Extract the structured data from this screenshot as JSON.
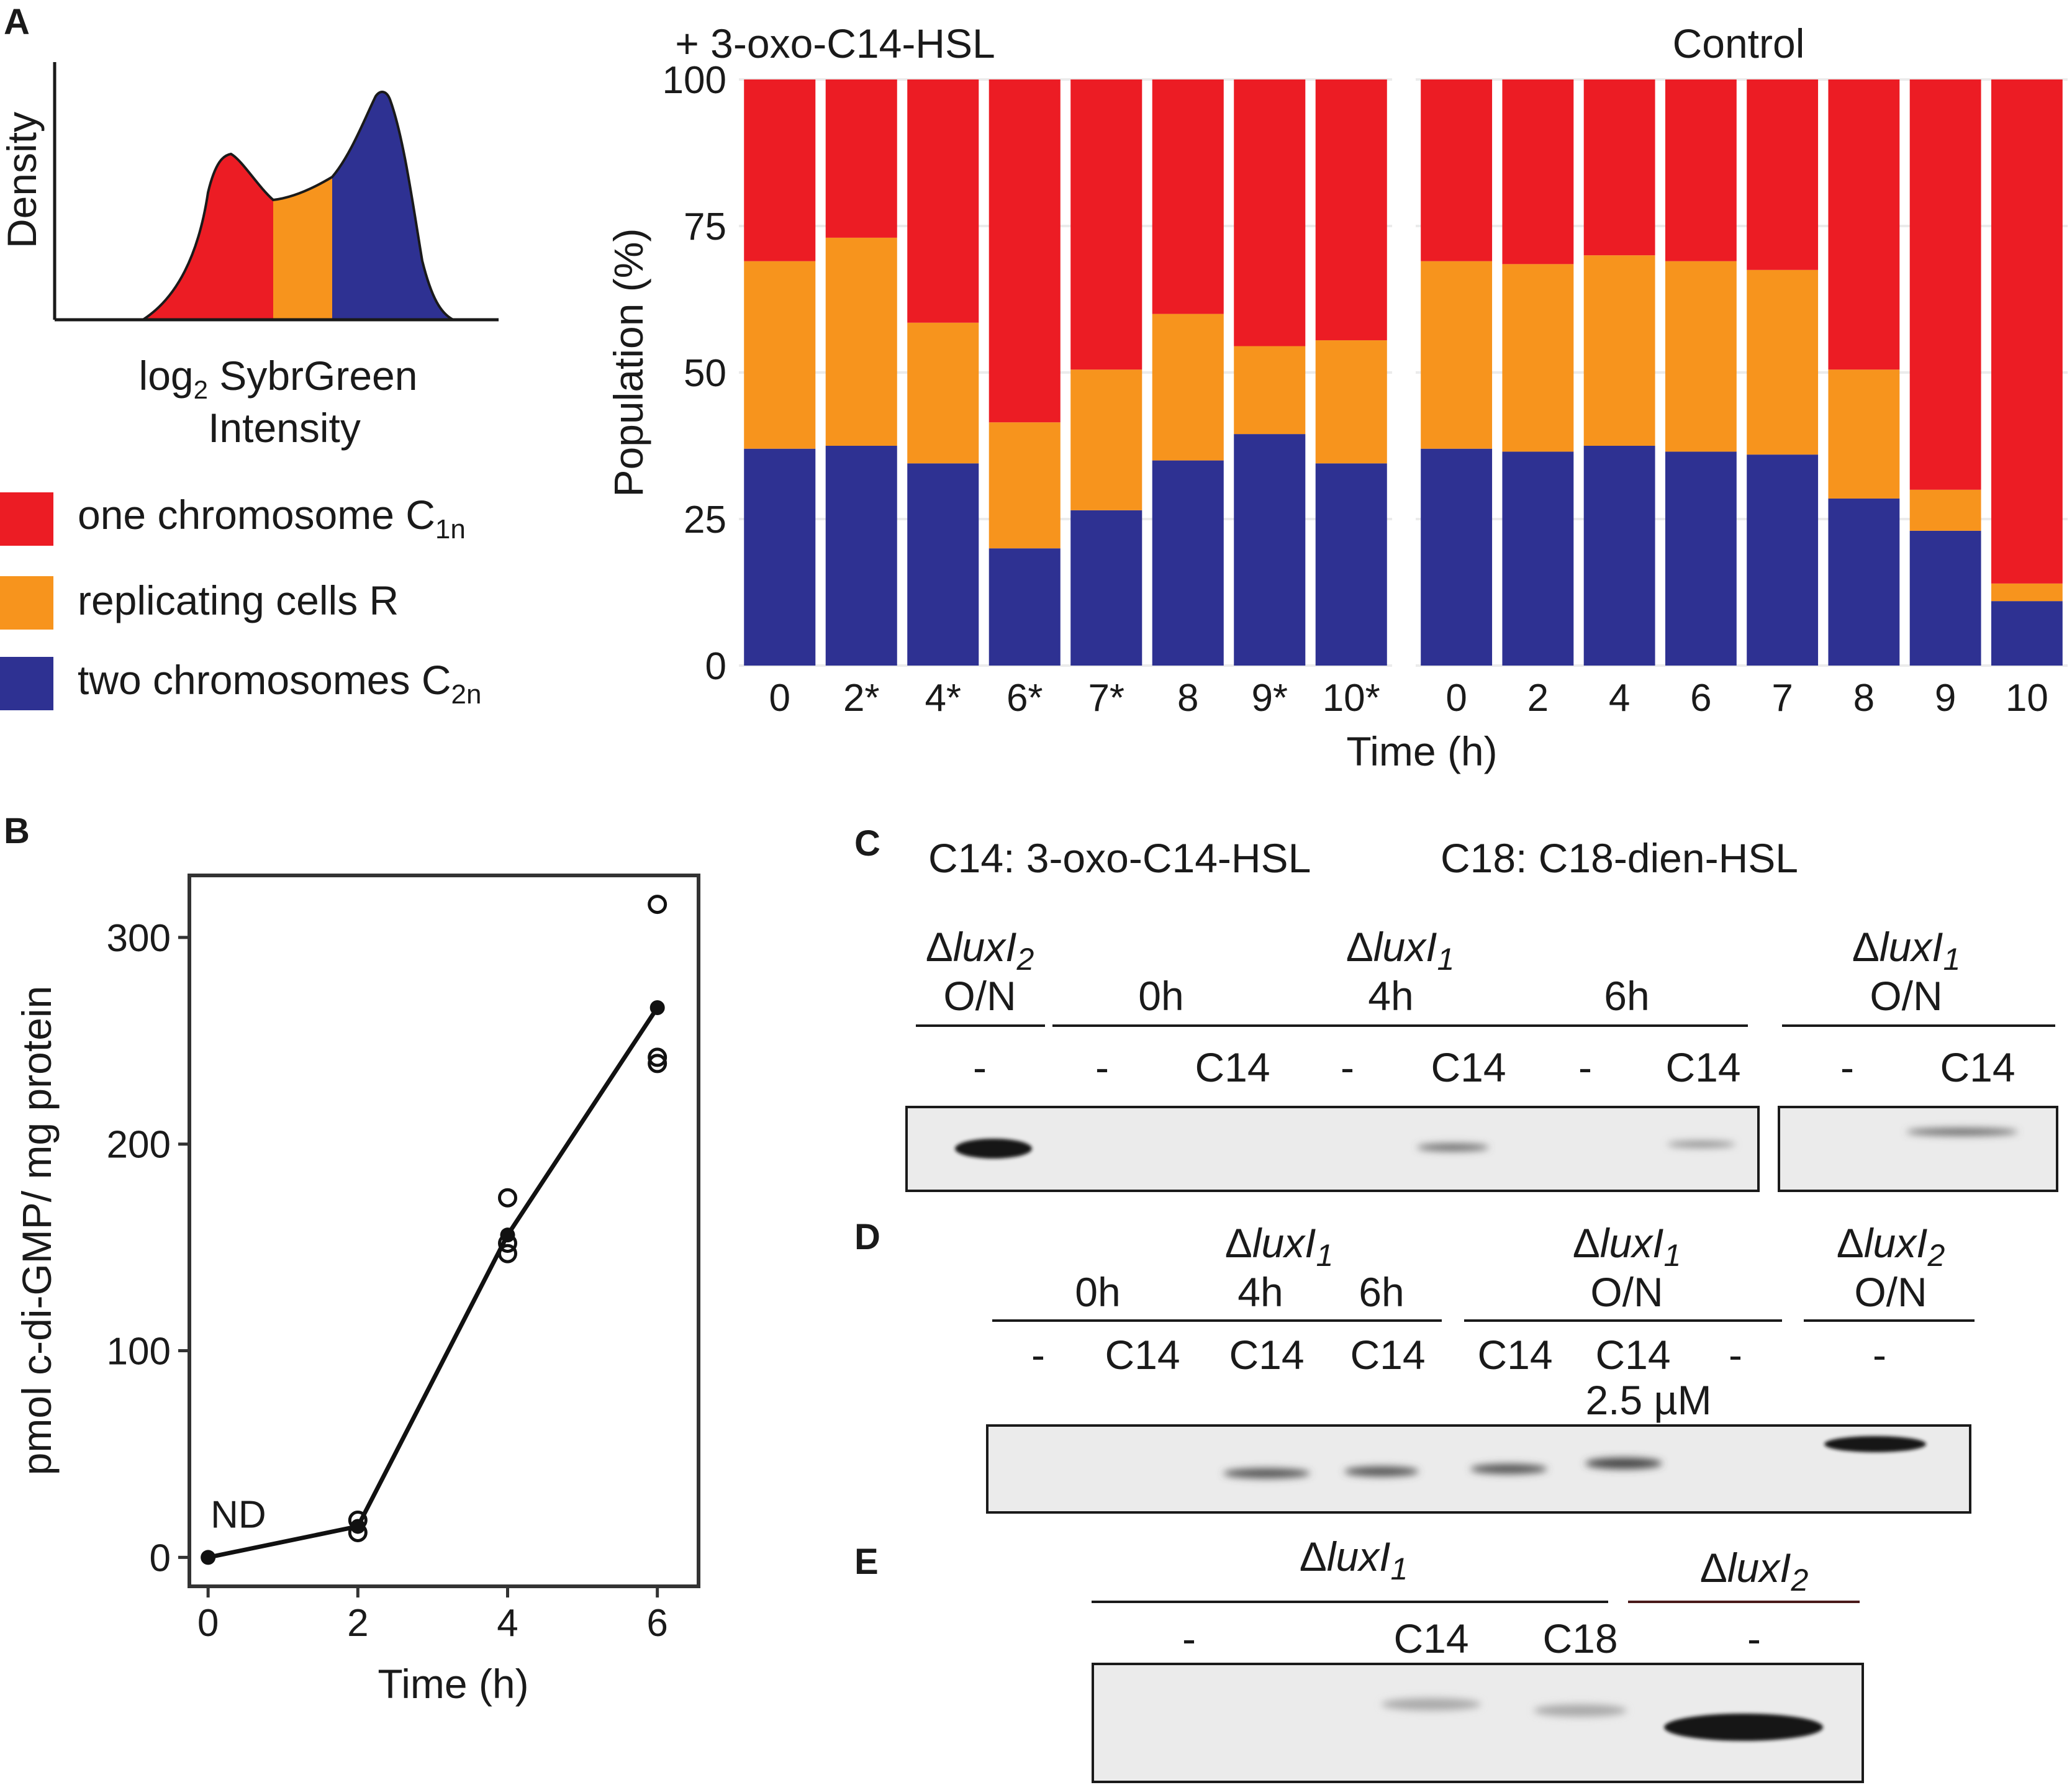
{
  "panels": {
    "A": "A",
    "B": "B",
    "C": "C",
    "D": "D",
    "E": "E"
  },
  "colors": {
    "c1n": "#ec1c24",
    "r": "#f7941d",
    "c2n": "#2e3192",
    "axis": "#1a1a1a",
    "gridline": "#ebebeb",
    "blot_background": "#ebebeb",
    "band": "#141414"
  },
  "schematic": {
    "ylabel": "Density",
    "xlabel_prefix": "log",
    "xlabel_sub": "2",
    "xlabel_suffix": " SybrGreen",
    "xlabel_line2": "Intensity"
  },
  "legend": {
    "items": [
      {
        "key": "c1n",
        "label": "one chromosome C",
        "sub": "1n"
      },
      {
        "key": "r",
        "label": "replicating cells R",
        "sub": ""
      },
      {
        "key": "c2n",
        "label": "two chromosomes C",
        "sub": "2n"
      }
    ]
  },
  "chart_data": [
    {
      "type": "bar",
      "stacked": true,
      "panel": "A",
      "ylabel": "Population (%)",
      "xlabel": "Time (h)",
      "ylim": [
        0,
        100
      ],
      "yticks": [
        "0",
        "25",
        "50",
        "75",
        "100"
      ],
      "facets": [
        {
          "title": "+ 3-oxo-C14-HSL",
          "categories": [
            "0",
            "2*",
            "4*",
            "6*",
            "7*",
            "8",
            "9*",
            "10*"
          ],
          "series": [
            {
              "name": "two chromosomes C2n",
              "key": "c2n",
              "values": [
                37,
                37.5,
                34.5,
                20,
                26.5,
                35,
                39.5,
                34.5
              ]
            },
            {
              "name": "replicating cells R",
              "key": "r",
              "values": [
                32,
                35.5,
                24,
                21.5,
                24,
                25,
                15,
                21
              ]
            },
            {
              "name": "one chromosome C1n",
              "key": "c1n",
              "values": [
                31,
                27,
                41.5,
                58.5,
                49.5,
                40,
                45.5,
                44.5
              ]
            }
          ]
        },
        {
          "title": "Control",
          "categories": [
            "0",
            "2",
            "4",
            "6",
            "7",
            "8",
            "9",
            "10"
          ],
          "series": [
            {
              "name": "two chromosomes C2n",
              "key": "c2n",
              "values": [
                37,
                36.5,
                37.5,
                36.5,
                36,
                28.5,
                23,
                11
              ]
            },
            {
              "name": "replicating cells R",
              "key": "r",
              "values": [
                32,
                32,
                32.5,
                32.5,
                31.5,
                22,
                7,
                3
              ]
            },
            {
              "name": "one chromosome C1n",
              "key": "c1n",
              "values": [
                31,
                31.5,
                30,
                31,
                32.5,
                49.5,
                70,
                86
              ]
            }
          ]
        }
      ]
    },
    {
      "type": "line",
      "panel": "B",
      "ylabel": "pmol c-di-GMP/ mg protein",
      "xlabel": "Time (h)",
      "xlim": [
        -0.25,
        6.55
      ],
      "ylim": [
        -14,
        330
      ],
      "xticks": [
        "0",
        "2",
        "4",
        "6"
      ],
      "yticks": [
        "0",
        "100",
        "200",
        "300"
      ],
      "mean": {
        "x": [
          0,
          2,
          4,
          6
        ],
        "y": [
          0,
          15,
          156,
          266
        ]
      },
      "replicates": {
        "x": [
          2,
          2,
          4,
          4,
          4,
          6,
          6,
          6
        ],
        "y": [
          18,
          12,
          174,
          147,
          152,
          316,
          242,
          239
        ]
      },
      "annotation": {
        "text": "ND",
        "x": 0,
        "y": 0
      }
    }
  ],
  "blots": {
    "C": {
      "legend_c14": "C14: 3-oxo-C14-HSL",
      "legend_c18": "C18: C18-dien-HSL",
      "strains": [
        {
          "delta": "Δ",
          "name": "luxI",
          "sub": "2",
          "line2": "O/N"
        },
        {
          "delta": "Δ",
          "name": "luxI",
          "sub": "1",
          "line2": ""
        },
        {
          "delta": "Δ",
          "name": "luxI",
          "sub": "1",
          "line2": "O/N"
        }
      ],
      "times": [
        "0h",
        "4h",
        "6h"
      ],
      "lanes": [
        "-",
        "-",
        "C14",
        "-",
        "C14",
        "-",
        "C14",
        "-",
        "C14"
      ]
    },
    "D": {
      "strains": [
        {
          "delta": "Δ",
          "name": "luxI",
          "sub": "1",
          "line2": ""
        },
        {
          "delta": "Δ",
          "name": "luxI",
          "sub": "1",
          "line2": "O/N"
        },
        {
          "delta": "Δ",
          "name": "luxI",
          "sub": "2",
          "line2": "O/N"
        }
      ],
      "times": [
        "0h",
        "4h",
        "6h"
      ],
      "lanes": [
        "-",
        "C14",
        "C14",
        "C14",
        "C14",
        "C14",
        "-",
        "-"
      ],
      "conc_note": "2.5 µM"
    },
    "E": {
      "strains": [
        {
          "delta": "Δ",
          "name": "luxI",
          "sub": "1"
        },
        {
          "delta": "Δ",
          "name": "luxI",
          "sub": "2"
        }
      ],
      "lanes": [
        "-",
        "C14",
        "C18",
        "-"
      ]
    }
  }
}
